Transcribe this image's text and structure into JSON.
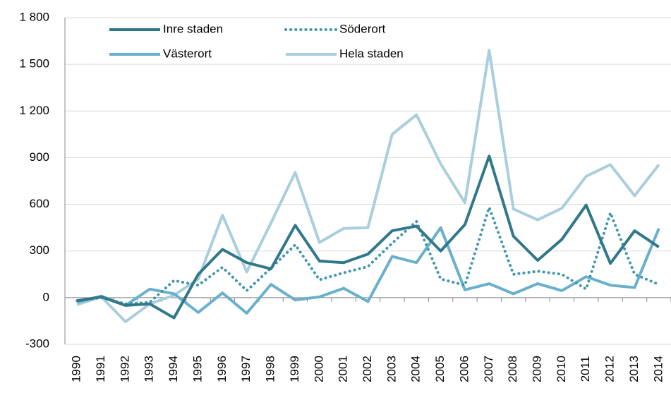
{
  "chart_data": {
    "type": "line",
    "categories": [
      "1990",
      "1991",
      "1992",
      "1993",
      "1994",
      "1995",
      "1996",
      "1997",
      "1998",
      "1999",
      "2000",
      "2001",
      "2002",
      "2003",
      "2004",
      "2005",
      "2006",
      "2007",
      "2008",
      "2009",
      "2010",
      "2011",
      "2012",
      "2013",
      "2014"
    ],
    "series": [
      {
        "name": "Inre staden",
        "color": "#31788a",
        "dash": false,
        "values": [
          -20,
          5,
          -50,
          -40,
          -130,
          150,
          310,
          225,
          185,
          465,
          235,
          225,
          280,
          430,
          460,
          300,
          470,
          910,
          395,
          240,
          375,
          595,
          220,
          430,
          325
        ]
      },
      {
        "name": "Söderort",
        "color": "#3f97ad",
        "dash": true,
        "values": [
          -20,
          0,
          -40,
          -30,
          110,
          80,
          195,
          45,
          190,
          340,
          115,
          160,
          200,
          350,
          490,
          120,
          80,
          580,
          150,
          170,
          150,
          55,
          545,
          150,
          85
        ]
      },
      {
        "name": "Västerort",
        "color": "#6ab0cc",
        "dash": false,
        "values": [
          -30,
          10,
          -50,
          55,
          25,
          -95,
          30,
          -100,
          85,
          -15,
          5,
          60,
          -25,
          265,
          225,
          450,
          50,
          90,
          25,
          90,
          45,
          135,
          80,
          65,
          445
        ]
      },
      {
        "name": "Hela staden",
        "color": "#aacfdc",
        "dash": false,
        "values": [
          -45,
          5,
          -155,
          -40,
          15,
          120,
          530,
          165,
          480,
          805,
          355,
          445,
          450,
          1050,
          1175,
          860,
          610,
          1590,
          570,
          500,
          575,
          780,
          855,
          655,
          855
        ]
      }
    ],
    "ylim": [
      -300,
      1800
    ],
    "yticks": [
      -300,
      0,
      300,
      600,
      900,
      {
        "value": 1200,
        "label": "1 200"
      },
      {
        "value": 1500,
        "label": "1 500"
      },
      {
        "value": 1800,
        "label": "1 800"
      }
    ],
    "grid": true
  }
}
